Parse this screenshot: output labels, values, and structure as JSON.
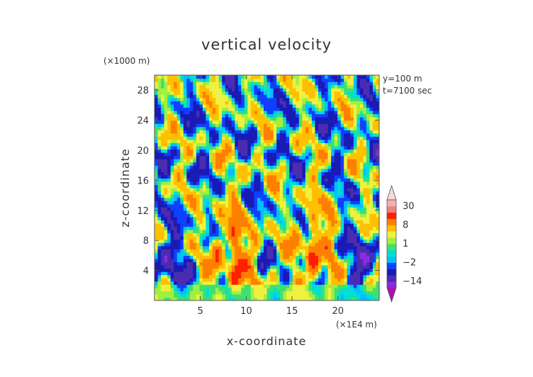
{
  "chart_data": {
    "type": "heatmap",
    "title": "vertical velocity",
    "xlabel": "x-coordinate",
    "ylabel": "z-coordinate",
    "x_unit": "(×1E4 m)",
    "y_unit": "(×1000 m)",
    "xlim": [
      0,
      24.5
    ],
    "ylim": [
      0,
      30
    ],
    "x_ticks": [
      5,
      10,
      15,
      20
    ],
    "y_ticks": [
      4,
      8,
      12,
      16,
      20,
      24,
      28
    ],
    "annotations": [
      "y=100 m",
      "t=7100 sec"
    ],
    "colorbar": {
      "tick_labels": [
        "30",
        "8",
        "1",
        "−2",
        "−14"
      ],
      "tick_values": [
        30,
        8,
        1,
        -2,
        -14
      ],
      "levels": [
        -30,
        -20,
        -14,
        -8,
        -4,
        -2,
        -1,
        0,
        1,
        2,
        4,
        8,
        14,
        20,
        30,
        40
      ],
      "colors": [
        "#b010b0",
        "#8a2be2",
        "#4b2cb0",
        "#1a1ab4",
        "#1040ff",
        "#00bfff",
        "#00e0d0",
        "#40e070",
        "#a0f040",
        "#f0f040",
        "#ffc000",
        "#ff7f00",
        "#ff2000",
        "#f08080",
        "#f4b0b0",
        "#f8d8d8"
      ]
    }
  }
}
